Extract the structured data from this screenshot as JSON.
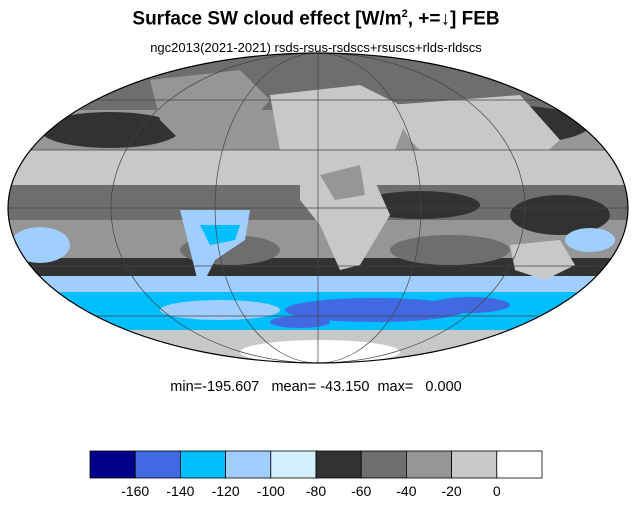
{
  "title": {
    "prefix": "Surface SW cloud effect [W/m",
    "sup": "2",
    "suffix": ", +=↓]  FEB"
  },
  "subtitle": "ngc2013(2021-2021)  rsds-rsus-rsdscs+rsuscs+rlds-rldscs",
  "stats": "min=-195.607   mean= -43.150  max=   0.000",
  "colorbar": {
    "colors": [
      "#00008b",
      "#4169e1",
      "#00bfff",
      "#a0cfff",
      "#d2f0ff",
      "#323232",
      "#6e6e6e",
      "#969696",
      "#c8c8c8",
      "#ffffff"
    ],
    "labels": [
      "-160",
      "-140",
      "-120",
      "-100",
      "-80",
      "-60",
      "-40",
      "-20",
      "0"
    ]
  },
  "map": {
    "projection": "mollweide",
    "ocean_band_colors": [
      "#c8c8c8",
      "#969696",
      "#6e6e6e",
      "#323232"
    ]
  }
}
